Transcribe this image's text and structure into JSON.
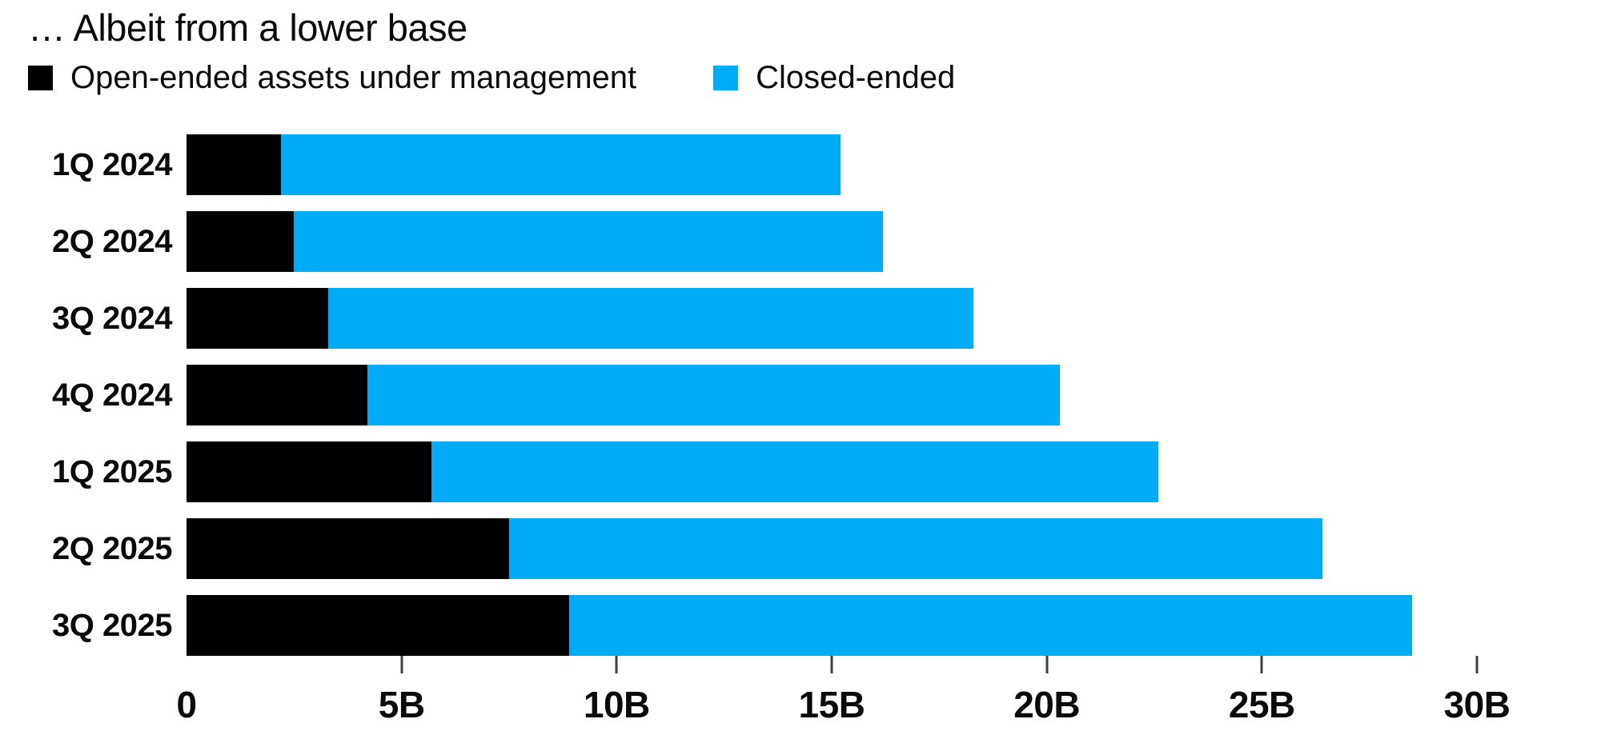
{
  "chart": {
    "title": "… Albeit from a lower base",
    "legend": [
      {
        "label": "Open-ended assets under management",
        "color": "#000000"
      },
      {
        "label": "Closed-ended",
        "color": "#00ACF5"
      }
    ]
  },
  "chart_data": {
    "type": "bar",
    "orientation": "horizontal",
    "stacked": true,
    "title": "… Albeit from a lower base",
    "categories": [
      "1Q 2024",
      "2Q 2024",
      "3Q 2024",
      "4Q 2024",
      "1Q 2025",
      "2Q 2025",
      "3Q 2025"
    ],
    "series": [
      {
        "name": "Open-ended assets under management",
        "color": "#000000",
        "values": [
          2.2,
          2.5,
          3.3,
          4.2,
          5.7,
          7.5,
          8.9
        ]
      },
      {
        "name": "Closed-ended",
        "color": "#00ACF5",
        "values": [
          13.0,
          13.7,
          15.0,
          16.1,
          16.9,
          18.9,
          19.6
        ]
      }
    ],
    "totals": [
      15.2,
      16.2,
      18.3,
      20.3,
      22.6,
      26.4,
      28.5
    ],
    "value_unit": "B",
    "xlabel": "",
    "ylabel": "",
    "xlim": [
      0,
      30
    ],
    "x_ticks": [
      {
        "value": 0,
        "label": "0",
        "tick_mark": false
      },
      {
        "value": 5,
        "label": "5B",
        "tick_mark": true
      },
      {
        "value": 10,
        "label": "10B",
        "tick_mark": true
      },
      {
        "value": 15,
        "label": "15B",
        "tick_mark": true
      },
      {
        "value": 20,
        "label": "20B",
        "tick_mark": true
      },
      {
        "value": 25,
        "label": "25B",
        "tick_mark": true
      },
      {
        "value": 30,
        "label": "30B",
        "tick_mark": true
      }
    ],
    "grid": false,
    "legend_position": "top-left",
    "background": "#ffffff"
  }
}
